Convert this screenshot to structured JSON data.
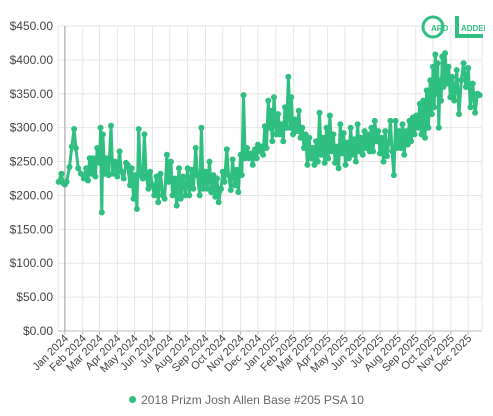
{
  "colors": {
    "series": "#2fbf80",
    "grid": "#e6e6e6",
    "axis": "#bbbbbb",
    "logo": "#2fbf80"
  },
  "logo": {
    "icon": "card-ladder-logo"
  },
  "chart_data": {
    "type": "line",
    "xlabel": "",
    "ylabel": "",
    "ylim": [
      0,
      450
    ],
    "y_ticks": [
      "$0.00",
      "$50.00",
      "$100.00",
      "$150.00",
      "$200.00",
      "$250.00",
      "$300.00",
      "$350.00",
      "$400.00",
      "$450.00"
    ],
    "x_ticks": [
      "Jan 2024",
      "Feb 2024",
      "Mar 2024",
      "Apr 2024",
      "May 2024",
      "Jun 2024",
      "Jul 2024",
      "Aug 2024",
      "Sep 2024",
      "Oct 2024",
      "Nov 2024",
      "Dec 2024",
      "Jan 2025",
      "Feb 2025",
      "Mar 2025",
      "Apr 2025",
      "May 2025",
      "Jun 2025",
      "Jul 2025",
      "Aug 2025",
      "Sep 2025",
      "Oct 2025",
      "Nov 2025",
      "Dec 2025"
    ],
    "x_range": [
      "2023-12-20",
      "2025-12-25"
    ],
    "grid": true,
    "legend_position": "bottom",
    "series": [
      {
        "name": "2018 Prizm Josh Allen Base #205 PSA 10",
        "points": [
          [
            "2023-12-21",
            220
          ],
          [
            "2023-12-26",
            232
          ],
          [
            "2023-12-29",
            218
          ],
          [
            "2024-01-01",
            216
          ],
          [
            "2024-01-04",
            220
          ],
          [
            "2024-01-09",
            242
          ],
          [
            "2024-01-13",
            272
          ],
          [
            "2024-01-17",
            298
          ],
          [
            "2024-01-20",
            270
          ],
          [
            "2024-01-24",
            240
          ],
          [
            "2024-01-29",
            232
          ],
          [
            "2024-02-03",
            225
          ],
          [
            "2024-02-07",
            240
          ],
          [
            "2024-02-10",
            222
          ],
          [
            "2024-02-13",
            255
          ],
          [
            "2024-02-16",
            232
          ],
          [
            "2024-02-19",
            255
          ],
          [
            "2024-02-23",
            228
          ],
          [
            "2024-02-26",
            270
          ],
          [
            "2024-03-01",
            248
          ],
          [
            "2024-03-03",
            300
          ],
          [
            "2024-03-05",
            175
          ],
          [
            "2024-03-07",
            290
          ],
          [
            "2024-03-10",
            232
          ],
          [
            "2024-03-13",
            255
          ],
          [
            "2024-03-17",
            230
          ],
          [
            "2024-03-21",
            303
          ],
          [
            "2024-03-24",
            232
          ],
          [
            "2024-03-28",
            250
          ],
          [
            "2024-04-01",
            228
          ],
          [
            "2024-04-05",
            265
          ],
          [
            "2024-04-08",
            235
          ],
          [
            "2024-04-12",
            225
          ],
          [
            "2024-04-16",
            248
          ],
          [
            "2024-04-19",
            245
          ],
          [
            "2024-04-23",
            215
          ],
          [
            "2024-04-26",
            240
          ],
          [
            "2024-04-29",
            195
          ],
          [
            "2024-05-02",
            230
          ],
          [
            "2024-05-05",
            180
          ],
          [
            "2024-05-08",
            298
          ],
          [
            "2024-05-11",
            230
          ],
          [
            "2024-05-15",
            225
          ],
          [
            "2024-05-18",
            290
          ],
          [
            "2024-05-21",
            230
          ],
          [
            "2024-05-25",
            210
          ],
          [
            "2024-05-28",
            235
          ],
          [
            "2024-06-01",
            215
          ],
          [
            "2024-06-04",
            200
          ],
          [
            "2024-06-08",
            228
          ],
          [
            "2024-06-11",
            190
          ],
          [
            "2024-06-15",
            232
          ],
          [
            "2024-06-19",
            200
          ],
          [
            "2024-06-22",
            195
          ],
          [
            "2024-06-26",
            260
          ],
          [
            "2024-06-29",
            220
          ],
          [
            "2024-07-03",
            250
          ],
          [
            "2024-07-06",
            200
          ],
          [
            "2024-07-10",
            225
          ],
          [
            "2024-07-13",
            185
          ],
          [
            "2024-07-17",
            240
          ],
          [
            "2024-07-20",
            195
          ],
          [
            "2024-07-24",
            228
          ],
          [
            "2024-07-28",
            200
          ],
          [
            "2024-08-01",
            240
          ],
          [
            "2024-08-04",
            200
          ],
          [
            "2024-08-08",
            238
          ],
          [
            "2024-08-11",
            210
          ],
          [
            "2024-08-15",
            270
          ],
          [
            "2024-08-18",
            230
          ],
          [
            "2024-08-22",
            200
          ],
          [
            "2024-08-25",
            300
          ],
          [
            "2024-08-28",
            210
          ],
          [
            "2024-09-01",
            235
          ],
          [
            "2024-09-04",
            210
          ],
          [
            "2024-09-08",
            250
          ],
          [
            "2024-09-11",
            205
          ],
          [
            "2024-09-15",
            230
          ],
          [
            "2024-09-18",
            198
          ],
          [
            "2024-09-21",
            225
          ],
          [
            "2024-09-24",
            190
          ],
          [
            "2024-09-28",
            210
          ],
          [
            "2024-10-01",
            235
          ],
          [
            "2024-10-04",
            220
          ],
          [
            "2024-10-08",
            268
          ],
          [
            "2024-10-11",
            230
          ],
          [
            "2024-10-15",
            208
          ],
          [
            "2024-10-18",
            253
          ],
          [
            "2024-10-22",
            215
          ],
          [
            "2024-10-25",
            238
          ],
          [
            "2024-10-28",
            205
          ],
          [
            "2024-11-01",
            260
          ],
          [
            "2024-11-03",
            230
          ],
          [
            "2024-11-06",
            348
          ],
          [
            "2024-11-09",
            255
          ],
          [
            "2024-11-12",
            270
          ],
          [
            "2024-11-15",
            255
          ],
          [
            "2024-11-19",
            262
          ],
          [
            "2024-11-22",
            245
          ],
          [
            "2024-11-26",
            268
          ],
          [
            "2024-11-29",
            255
          ],
          [
            "2024-12-01",
            275
          ],
          [
            "2024-12-04",
            265
          ],
          [
            "2024-12-07",
            272
          ],
          [
            "2024-12-10",
            260
          ],
          [
            "2024-12-13",
            302
          ],
          [
            "2024-12-16",
            270
          ],
          [
            "2024-12-19",
            340
          ],
          [
            "2024-12-21",
            300
          ],
          [
            "2024-12-23",
            325
          ],
          [
            "2024-12-26",
            280
          ],
          [
            "2024-12-29",
            345
          ],
          [
            "2025-01-02",
            290
          ],
          [
            "2025-01-05",
            320
          ],
          [
            "2025-01-08",
            290
          ],
          [
            "2025-01-11",
            305
          ],
          [
            "2025-01-14",
            280
          ],
          [
            "2025-01-17",
            330
          ],
          [
            "2025-01-20",
            300
          ],
          [
            "2025-01-23",
            375
          ],
          [
            "2025-01-26",
            300
          ],
          [
            "2025-01-28",
            345
          ],
          [
            "2025-01-31",
            290
          ],
          [
            "2025-02-03",
            312
          ],
          [
            "2025-02-07",
            295
          ],
          [
            "2025-02-10",
            325
          ],
          [
            "2025-02-13",
            285
          ],
          [
            "2025-02-16",
            300
          ],
          [
            "2025-02-19",
            270
          ],
          [
            "2025-02-22",
            290
          ],
          [
            "2025-02-25",
            245
          ],
          [
            "2025-02-28",
            285
          ],
          [
            "2025-03-03",
            255
          ],
          [
            "2025-03-06",
            270
          ],
          [
            "2025-03-09",
            245
          ],
          [
            "2025-03-12",
            280
          ],
          [
            "2025-03-15",
            250
          ],
          [
            "2025-03-18",
            322
          ],
          [
            "2025-03-21",
            260
          ],
          [
            "2025-03-24",
            285
          ],
          [
            "2025-03-27",
            248
          ],
          [
            "2025-03-30",
            300
          ],
          [
            "2025-04-02",
            255
          ],
          [
            "2025-04-05",
            318
          ],
          [
            "2025-04-08",
            265
          ],
          [
            "2025-04-11",
            290
          ],
          [
            "2025-04-14",
            248
          ],
          [
            "2025-04-17",
            272
          ],
          [
            "2025-04-20",
            240
          ],
          [
            "2025-04-23",
            305
          ],
          [
            "2025-04-26",
            262
          ],
          [
            "2025-04-29",
            292
          ],
          [
            "2025-05-02",
            245
          ],
          [
            "2025-05-05",
            278
          ],
          [
            "2025-05-08",
            255
          ],
          [
            "2025-05-11",
            300
          ],
          [
            "2025-05-14",
            260
          ],
          [
            "2025-05-17",
            283
          ],
          [
            "2025-05-20",
            250
          ],
          [
            "2025-05-23",
            305
          ],
          [
            "2025-05-26",
            265
          ],
          [
            "2025-05-29",
            285
          ],
          [
            "2025-06-01",
            260
          ],
          [
            "2025-06-04",
            295
          ],
          [
            "2025-06-07",
            270
          ],
          [
            "2025-06-10",
            290
          ],
          [
            "2025-06-13",
            265
          ],
          [
            "2025-06-16",
            300
          ],
          [
            "2025-06-19",
            265
          ],
          [
            "2025-06-22",
            310
          ],
          [
            "2025-06-25",
            280
          ],
          [
            "2025-06-28",
            295
          ],
          [
            "2025-07-01",
            262
          ],
          [
            "2025-07-04",
            285
          ],
          [
            "2025-07-07",
            250
          ],
          [
            "2025-07-10",
            295
          ],
          [
            "2025-07-13",
            258
          ],
          [
            "2025-07-16",
            278
          ],
          [
            "2025-07-19",
            310
          ],
          [
            "2025-07-22",
            265
          ],
          [
            "2025-07-25",
            230
          ],
          [
            "2025-07-28",
            310
          ],
          [
            "2025-07-31",
            270
          ],
          [
            "2025-08-03",
            295
          ],
          [
            "2025-08-06",
            270
          ],
          [
            "2025-08-09",
            305
          ],
          [
            "2025-08-12",
            260
          ],
          [
            "2025-08-15",
            295
          ],
          [
            "2025-08-18",
            275
          ],
          [
            "2025-08-21",
            310
          ],
          [
            "2025-08-24",
            280
          ],
          [
            "2025-08-27",
            315
          ],
          [
            "2025-08-30",
            290
          ],
          [
            "2025-09-02",
            318
          ],
          [
            "2025-09-05",
            300
          ],
          [
            "2025-09-08",
            335
          ],
          [
            "2025-09-11",
            290
          ],
          [
            "2025-09-14",
            340
          ],
          [
            "2025-09-17",
            285
          ],
          [
            "2025-09-20",
            355
          ],
          [
            "2025-09-23",
            300
          ],
          [
            "2025-09-26",
            370
          ],
          [
            "2025-09-29",
            320
          ],
          [
            "2025-10-01",
            390
          ],
          [
            "2025-10-03",
            330
          ],
          [
            "2025-10-05",
            408
          ],
          [
            "2025-10-07",
            350
          ],
          [
            "2025-10-09",
            395
          ],
          [
            "2025-10-11",
            300
          ],
          [
            "2025-10-13",
            370
          ],
          [
            "2025-10-15",
            340
          ],
          [
            "2025-10-17",
            405
          ],
          [
            "2025-10-19",
            360
          ],
          [
            "2025-10-22",
            410
          ],
          [
            "2025-10-25",
            365
          ],
          [
            "2025-10-28",
            390
          ],
          [
            "2025-10-31",
            345
          ],
          [
            "2025-11-03",
            375
          ],
          [
            "2025-11-07",
            340
          ],
          [
            "2025-11-11",
            385
          ],
          [
            "2025-11-15",
            320
          ],
          [
            "2025-11-19",
            370
          ],
          [
            "2025-11-23",
            395
          ],
          [
            "2025-11-27",
            360
          ],
          [
            "2025-12-01",
            388
          ],
          [
            "2025-12-05",
            330
          ],
          [
            "2025-12-09",
            365
          ],
          [
            "2025-12-13",
            322
          ],
          [
            "2025-12-17",
            350
          ],
          [
            "2025-12-21",
            348
          ]
        ]
      }
    ]
  }
}
